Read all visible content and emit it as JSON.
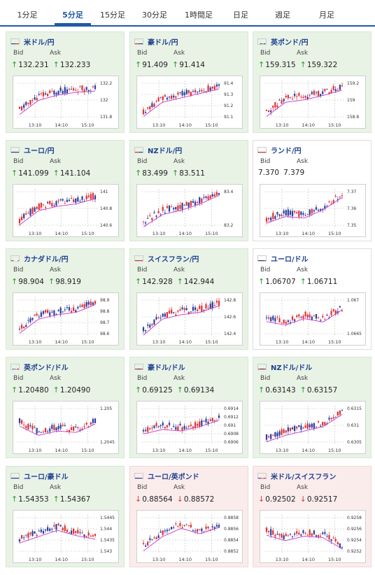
{
  "tabs": [
    {
      "label": "1分足"
    },
    {
      "label": "5分足"
    },
    {
      "label": "15分足"
    },
    {
      "label": "30分足"
    },
    {
      "label": "1時間足"
    },
    {
      "label": "日足"
    },
    {
      "label": "週足"
    },
    {
      "label": "月足"
    }
  ],
  "active_tab": "5分足",
  "labels": {
    "bid": "Bid",
    "ask": "Ask"
  },
  "colors": {
    "up_bg": "#e8f3e6",
    "down_bg": "#fbecec",
    "up_arrow": "#2b9a2b",
    "down_arrow": "#d23b3b",
    "ma_line": "#cc33cc",
    "candle_up": "#e03030",
    "candle_down": "#2a3fa0"
  },
  "cards": [
    {
      "title": "米ドル/円",
      "flag": "us-flag-icon",
      "bid": "132.231",
      "ask": "132.233",
      "direction": "up",
      "state": "up",
      "x_ticks": [
        "13:10",
        "14:10",
        "15:10"
      ],
      "y_ticks": [
        "132.2",
        "132",
        "131.8"
      ],
      "trend": [
        0.25,
        0.6,
        0.72,
        0.78,
        0.8
      ]
    },
    {
      "title": "豪ドル/円",
      "flag": "au-flag-icon",
      "bid": "91.409",
      "ask": "91.414",
      "direction": "up",
      "state": "up",
      "x_ticks": [
        "13:10",
        "14:10",
        "15:10"
      ],
      "y_ticks": [
        "91.4",
        "91.3",
        "91.2",
        "91.1"
      ],
      "trend": [
        0.2,
        0.55,
        0.65,
        0.75,
        0.85
      ]
    },
    {
      "title": "英ポンド/円",
      "flag": "uk-flag-icon",
      "bid": "159.315",
      "ask": "159.322",
      "direction": "up",
      "state": "up",
      "x_ticks": [
        "13:10",
        "14:10",
        "15:10"
      ],
      "y_ticks": [
        "159.2",
        "159",
        "158.8"
      ],
      "trend": [
        0.2,
        0.55,
        0.6,
        0.7,
        0.82
      ]
    },
    {
      "title": "ユーロ/円",
      "flag": "eu-flag-icon",
      "bid": "141.099",
      "ask": "141.104",
      "direction": "up",
      "state": "up",
      "x_ticks": [
        "13:10",
        "14:10",
        "15:10"
      ],
      "y_ticks": [
        "141",
        "140.8",
        "140.6"
      ],
      "trend": [
        0.2,
        0.55,
        0.65,
        0.7,
        0.82
      ]
    },
    {
      "title": "NZドル/円",
      "flag": "nz-flag-icon",
      "bid": "83.499",
      "ask": "83.511",
      "direction": "up",
      "state": "up",
      "x_ticks": [
        "13:10",
        "14:10",
        "15:10"
      ],
      "y_ticks": [
        "83.4",
        "83.2"
      ],
      "trend": [
        0.15,
        0.45,
        0.55,
        0.7,
        0.9
      ]
    },
    {
      "title": "ランド/円",
      "flag": "za-flag-icon",
      "bid": "7.370",
      "ask": "7.379",
      "direction": "none",
      "state": "neutral",
      "x_ticks": [
        "13:10",
        "14:10",
        "15:10"
      ],
      "y_ticks": [
        "7.37",
        "7.36",
        "7.35"
      ],
      "trend": [
        0.25,
        0.4,
        0.35,
        0.55,
        0.85
      ]
    },
    {
      "title": "カナダドル/円",
      "flag": "ca-flag-icon",
      "bid": "98.904",
      "ask": "98.919",
      "direction": "up",
      "state": "up",
      "x_ticks": [
        "13:10",
        "14:10",
        "15:10"
      ],
      "y_ticks": [
        "98.9",
        "98.8",
        "98.7",
        "98.6"
      ],
      "trend": [
        0.2,
        0.55,
        0.65,
        0.7,
        0.88
      ]
    },
    {
      "title": "スイスフラン/円",
      "flag": "ch-flag-icon",
      "bid": "142.928",
      "ask": "142.944",
      "direction": "up",
      "state": "up",
      "x_ticks": [
        "13:10",
        "14:10",
        "15:10"
      ],
      "y_ticks": [
        "142.8",
        "142.6",
        "142.4"
      ],
      "trend": [
        0.15,
        0.55,
        0.65,
        0.7,
        0.85
      ]
    },
    {
      "title": "ユーロ/ドル",
      "flag": "eu-us-flag-icon",
      "bid": "1.06707",
      "ask": "1.06711",
      "direction": "up",
      "state": "neutral",
      "x_ticks": [
        "13:10",
        "14:10",
        "15:10"
      ],
      "y_ticks": [
        "1.067",
        "1.0665"
      ],
      "trend": [
        0.5,
        0.4,
        0.55,
        0.45,
        0.75
      ]
    },
    {
      "title": "英ポンド/ドル",
      "flag": "uk-us-flag-icon",
      "bid": "1.20480",
      "ask": "1.20490",
      "direction": "up",
      "state": "up",
      "x_ticks": [
        "13:10",
        "14:10",
        "15:10"
      ],
      "y_ticks": [
        "1.205",
        "1.2045"
      ],
      "trend": [
        0.6,
        0.35,
        0.45,
        0.4,
        0.6
      ]
    },
    {
      "title": "豪ドル/ドル",
      "flag": "au-us-flag-icon",
      "bid": "0.69125",
      "ask": "0.69134",
      "direction": "up",
      "state": "up",
      "x_ticks": [
        "13:10",
        "14:10",
        "15:10"
      ],
      "y_ticks": [
        "0.6914",
        "0.6912",
        "0.691",
        "0.6908",
        "0.6906"
      ],
      "trend": [
        0.4,
        0.5,
        0.45,
        0.55,
        0.7
      ]
    },
    {
      "title": "NZドル/ドル",
      "flag": "nz-us-flag-icon",
      "bid": "0.63143",
      "ask": "0.63157",
      "direction": "up",
      "state": "up",
      "x_ticks": [
        "13:10",
        "14:10",
        "15:10"
      ],
      "y_ticks": [
        "0.6315",
        "0.631",
        "0.6305"
      ],
      "trend": [
        0.2,
        0.35,
        0.45,
        0.55,
        0.85
      ]
    },
    {
      "title": "ユーロ/豪ドル",
      "flag": "eu-au-flag-icon",
      "bid": "1.54353",
      "ask": "1.54367",
      "direction": "up",
      "state": "up",
      "x_ticks": [
        "13:10",
        "14:10",
        "15:10"
      ],
      "y_ticks": [
        "1.5445",
        "1.544",
        "1.5435",
        "1.543"
      ],
      "trend": [
        0.4,
        0.55,
        0.7,
        0.55,
        0.45
      ]
    },
    {
      "title": "ユーロ/英ポンド",
      "flag": "eu-uk-flag-icon",
      "bid": "0.88564",
      "ask": "0.88572",
      "direction": "down",
      "state": "down",
      "x_ticks": [
        "13:10",
        "14:10",
        "15:10"
      ],
      "y_ticks": [
        "0.8858",
        "0.8856",
        "0.8854",
        "0.8852"
      ],
      "trend": [
        0.2,
        0.55,
        0.75,
        0.6,
        0.75
      ]
    },
    {
      "title": "米ドル/スイスフラン",
      "flag": "us-ch-flag-icon",
      "bid": "0.92502",
      "ask": "0.92517",
      "direction": "down",
      "state": "down",
      "x_ticks": [
        "13:10",
        "14:10",
        "15:10"
      ],
      "y_ticks": [
        "0.9258",
        "0.9256",
        "0.9254",
        "0.9252"
      ],
      "trend": [
        0.6,
        0.45,
        0.55,
        0.5,
        0.2
      ]
    }
  ]
}
